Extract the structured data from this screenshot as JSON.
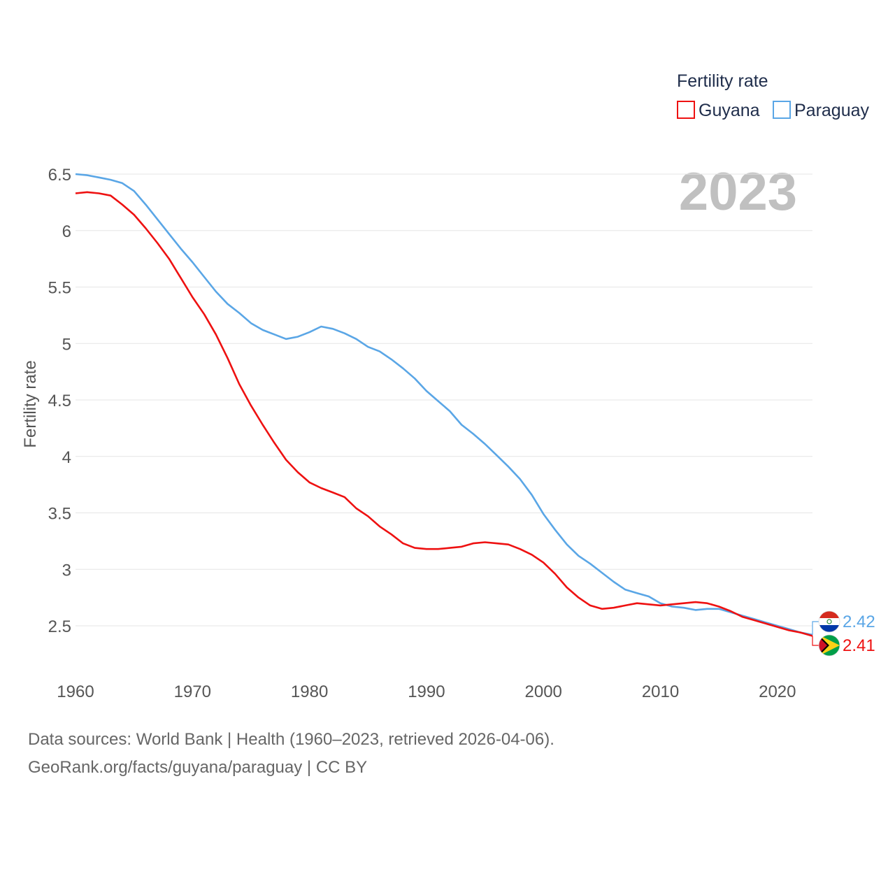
{
  "chart_data": {
    "type": "line",
    "title": "Fertility rate",
    "year_label": "2023",
    "ylabel": "Fertility rate",
    "xlabel": "",
    "xlim": [
      1960,
      2023
    ],
    "ylim": [
      2.1,
      6.55
    ],
    "yticks": [
      2.5,
      3,
      3.5,
      4,
      4.5,
      5,
      5.5,
      6,
      6.5
    ],
    "ytick_labels": [
      "2.5",
      "3",
      "3.5",
      "4",
      "4.5",
      "5",
      "5.5",
      "6",
      "6.5"
    ],
    "xticks": [
      1960,
      1970,
      1980,
      1990,
      2000,
      2010,
      2020
    ],
    "xtick_labels": [
      "1960",
      "1970",
      "1980",
      "1990",
      "2000",
      "2010",
      "2020"
    ],
    "grid": true,
    "legend_position": "top-right",
    "x": [
      1960,
      1961,
      1962,
      1963,
      1964,
      1965,
      1966,
      1967,
      1968,
      1969,
      1970,
      1971,
      1972,
      1973,
      1974,
      1975,
      1976,
      1977,
      1978,
      1979,
      1980,
      1981,
      1982,
      1983,
      1984,
      1985,
      1986,
      1987,
      1988,
      1989,
      1990,
      1991,
      1992,
      1993,
      1994,
      1995,
      1996,
      1997,
      1998,
      1999,
      2000,
      2001,
      2002,
      2003,
      2004,
      2005,
      2006,
      2007,
      2008,
      2009,
      2010,
      2011,
      2012,
      2013,
      2014,
      2015,
      2016,
      2017,
      2018,
      2019,
      2020,
      2021,
      2022,
      2023
    ],
    "series": [
      {
        "name": "Guyana",
        "color": "#ee1111",
        "end_label": "2.41",
        "flag": "guyana-flag",
        "values": [
          6.33,
          6.34,
          6.33,
          6.31,
          6.23,
          6.14,
          6.02,
          5.89,
          5.75,
          5.58,
          5.41,
          5.26,
          5.08,
          4.87,
          4.64,
          4.45,
          4.28,
          4.12,
          3.97,
          3.86,
          3.77,
          3.72,
          3.68,
          3.64,
          3.54,
          3.47,
          3.38,
          3.31,
          3.23,
          3.19,
          3.18,
          3.18,
          3.19,
          3.2,
          3.23,
          3.24,
          3.23,
          3.22,
          3.18,
          3.13,
          3.06,
          2.96,
          2.84,
          2.75,
          2.68,
          2.65,
          2.66,
          2.68,
          2.7,
          2.69,
          2.68,
          2.69,
          2.7,
          2.71,
          2.7,
          2.67,
          2.63,
          2.58,
          2.55,
          2.52,
          2.49,
          2.46,
          2.44,
          2.41
        ]
      },
      {
        "name": "Paraguay",
        "color": "#5aa6e6",
        "end_label": "2.42",
        "flag": "paraguay-flag",
        "values": [
          6.5,
          6.49,
          6.47,
          6.45,
          6.42,
          6.35,
          6.23,
          6.1,
          5.97,
          5.84,
          5.72,
          5.59,
          5.46,
          5.35,
          5.27,
          5.18,
          5.12,
          5.08,
          5.04,
          5.06,
          5.1,
          5.15,
          5.13,
          5.09,
          5.04,
          4.97,
          4.93,
          4.86,
          4.78,
          4.69,
          4.58,
          4.49,
          4.4,
          4.28,
          4.2,
          4.11,
          4.01,
          3.91,
          3.8,
          3.66,
          3.49,
          3.35,
          3.22,
          3.12,
          3.05,
          2.97,
          2.89,
          2.82,
          2.79,
          2.76,
          2.7,
          2.67,
          2.66,
          2.64,
          2.65,
          2.65,
          2.62,
          2.59,
          2.56,
          2.53,
          2.5,
          2.47,
          2.44,
          2.42
        ]
      }
    ]
  },
  "footer": {
    "sources": "Data sources: World Bank | Health (1960–2023, retrieved 2026-04-06).",
    "credit": "GeoRank.org/facts/guyana/paraguay | CC BY"
  }
}
